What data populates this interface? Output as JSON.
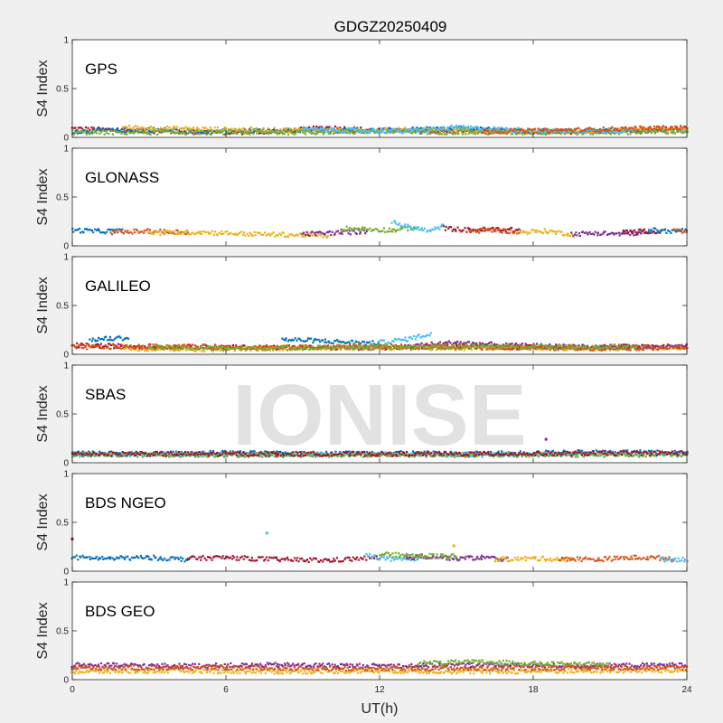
{
  "chart_data": {
    "type": "scatter",
    "title": "GDGZ20250409",
    "xlabel": "UT(h)",
    "ylabel": "S4 Index",
    "xlim": [
      0,
      24
    ],
    "ylim": [
      0,
      1
    ],
    "xticks": [
      "0",
      "6",
      "12",
      "18",
      "24"
    ],
    "yticks": [
      "0",
      "0.5",
      "1"
    ],
    "watermark": "IONISE",
    "series_colors": [
      "#0072BD",
      "#D95319",
      "#EDB120",
      "#7E2F8E",
      "#77AC30",
      "#4DBEEE",
      "#A2142F"
    ],
    "panels": [
      {
        "name": "GPS",
        "segments": [
          {
            "color_index": 6,
            "x": [
              0,
              2,
              4,
              6,
              8,
              10,
              12,
              14,
              16,
              18,
              20,
              22,
              24
            ],
            "y": [
              0.09,
              0.07,
              0.06,
              0.05,
              0.06,
              0.1,
              0.07,
              0.06,
              0.07,
              0.06,
              0.06,
              0.08,
              0.09
            ]
          },
          {
            "color_index": 0,
            "x": [
              0,
              3,
              6,
              9,
              12,
              15,
              18,
              21,
              24
            ],
            "y": [
              0.06,
              0.08,
              0.06,
              0.07,
              0.07,
              0.09,
              0.06,
              0.07,
              0.07
            ]
          },
          {
            "color_index": 2,
            "x": [
              2,
              6,
              10,
              14,
              16,
              20,
              24
            ],
            "y": [
              0.1,
              0.08,
              0.07,
              0.08,
              0.06,
              0.06,
              0.08
            ]
          },
          {
            "color_index": 4,
            "x": [
              0,
              4,
              8,
              12,
              16,
              20,
              24
            ],
            "y": [
              0.05,
              0.05,
              0.05,
              0.06,
              0.05,
              0.05,
              0.06
            ]
          },
          {
            "color_index": 5,
            "x": [
              9,
              11,
              13,
              15,
              19,
              22
            ],
            "y": [
              0.08,
              0.07,
              0.06,
              0.1,
              0.06,
              0.07
            ]
          },
          {
            "color_index": 1,
            "x": [
              16,
              19,
              22,
              24
            ],
            "y": [
              0.06,
              0.07,
              0.09,
              0.1
            ]
          }
        ]
      },
      {
        "name": "GLONASS",
        "segments": [
          {
            "color_index": 0,
            "x": [
              0,
              1,
              2
            ],
            "y": [
              0.16,
              0.15,
              0.15
            ]
          },
          {
            "color_index": 1,
            "x": [
              1.5,
              3,
              4.5
            ],
            "y": [
              0.14,
              0.15,
              0.14
            ]
          },
          {
            "color_index": 2,
            "x": [
              3,
              5,
              7,
              9,
              10
            ],
            "y": [
              0.13,
              0.14,
              0.12,
              0.11,
              0.1
            ]
          },
          {
            "color_index": 3,
            "x": [
              9,
              10,
              11,
              11.5
            ],
            "y": [
              0.12,
              0.13,
              0.14,
              0.15
            ]
          },
          {
            "color_index": 4,
            "x": [
              10.5,
              11.5,
              12.5,
              13.5
            ],
            "y": [
              0.18,
              0.17,
              0.16,
              0.19
            ]
          },
          {
            "color_index": 5,
            "x": [
              12.5,
              13,
              14,
              14.5
            ],
            "y": [
              0.24,
              0.2,
              0.15,
              0.21
            ]
          },
          {
            "color_index": 6,
            "x": [
              14.5,
              15.5,
              16.5,
              17.5
            ],
            "y": [
              0.18,
              0.16,
              0.17,
              0.16
            ]
          },
          {
            "color_index": 1,
            "x": [
              15.5,
              16.5,
              17.5
            ],
            "y": [
              0.15,
              0.16,
              0.14
            ]
          },
          {
            "color_index": 2,
            "x": [
              17.5,
              18.5,
              19.5
            ],
            "y": [
              0.14,
              0.15,
              0.12
            ]
          },
          {
            "color_index": 3,
            "x": [
              19.5,
              20.5,
              21.5,
              22.5
            ],
            "y": [
              0.12,
              0.13,
              0.12,
              0.14
            ]
          },
          {
            "color_index": 6,
            "x": [
              21.5,
              22.5,
              23
            ],
            "y": [
              0.14,
              0.15,
              0.14
            ]
          },
          {
            "color_index": 0,
            "x": [
              22.5,
              23.5,
              24
            ],
            "y": [
              0.16,
              0.15,
              0.16
            ]
          },
          {
            "color_index": 1,
            "x": [
              23.5,
              24
            ],
            "y": [
              0.15,
              0.14
            ]
          }
        ]
      },
      {
        "name": "GALILEO",
        "segments": [
          {
            "color_index": 6,
            "x": [
              0,
              3,
              6,
              9,
              12,
              15,
              18,
              21,
              24
            ],
            "y": [
              0.09,
              0.08,
              0.07,
              0.07,
              0.06,
              0.08,
              0.07,
              0.08,
              0.08
            ]
          },
          {
            "color_index": 0,
            "x": [
              0.7,
              1.5,
              2.2
            ],
            "y": [
              0.15,
              0.16,
              0.17
            ]
          },
          {
            "color_index": 0,
            "x": [
              8.2,
              9.5,
              11,
              12
            ],
            "y": [
              0.15,
              0.14,
              0.12,
              0.11
            ]
          },
          {
            "color_index": 5,
            "x": [
              12,
              13,
              14
            ],
            "y": [
              0.12,
              0.15,
              0.21
            ]
          },
          {
            "color_index": 2,
            "x": [
              2,
              5,
              8,
              11,
              14,
              17,
              20,
              23,
              24
            ],
            "y": [
              0.06,
              0.05,
              0.06,
              0.07,
              0.06,
              0.07,
              0.06,
              0.07,
              0.06
            ]
          },
          {
            "color_index": 3,
            "x": [
              13,
              15,
              17,
              19,
              21,
              24
            ],
            "y": [
              0.08,
              0.12,
              0.09,
              0.08,
              0.07,
              0.08
            ]
          },
          {
            "color_index": 1,
            "x": [
              0,
              4,
              8,
              12,
              16,
              20,
              24
            ],
            "y": [
              0.07,
              0.08,
              0.07,
              0.08,
              0.07,
              0.06,
              0.07
            ]
          },
          {
            "color_index": 4,
            "x": [
              3,
              6,
              11,
              18,
              22
            ],
            "y": [
              0.07,
              0.06,
              0.07,
              0.08,
              0.07
            ]
          }
        ]
      },
      {
        "name": "SBAS",
        "segments": [
          {
            "color_index": 0,
            "x": [
              0,
              3,
              6,
              9,
              12,
              15,
              18,
              21,
              24
            ],
            "y": [
              0.1,
              0.09,
              0.1,
              0.09,
              0.1,
              0.09,
              0.1,
              0.11,
              0.1
            ]
          },
          {
            "color_index": 5,
            "x": [
              0,
              4,
              8,
              12,
              16,
              20,
              24
            ],
            "y": [
              0.08,
              0.09,
              0.08,
              0.09,
              0.08,
              0.09,
              0.09
            ]
          },
          {
            "color_index": 4,
            "x": [
              0,
              6,
              12,
              18,
              24
            ],
            "y": [
              0.08,
              0.08,
              0.08,
              0.08,
              0.08
            ]
          },
          {
            "color_index": 6,
            "x": [
              0,
              8,
              16,
              24
            ],
            "y": [
              0.09,
              0.09,
              0.09,
              0.1
            ]
          },
          {
            "color_index": 3,
            "x": [
              18.5
            ],
            "y": [
              0.24
            ]
          }
        ]
      },
      {
        "name": "BDS NGEO",
        "segments": [
          {
            "color_index": 0,
            "x": [
              0,
              1.5,
              3,
              4.5
            ],
            "y": [
              0.14,
              0.13,
              0.14,
              0.12
            ]
          },
          {
            "color_index": 6,
            "x": [
              4.5,
              6,
              8,
              10,
              12
            ],
            "y": [
              0.13,
              0.14,
              0.12,
              0.11,
              0.14
            ]
          },
          {
            "color_index": 5,
            "x": [
              11.5,
              12.5,
              13.5
            ],
            "y": [
              0.16,
              0.12,
              0.11
            ]
          },
          {
            "color_index": 3,
            "x": [
              13,
              14,
              15,
              16,
              17
            ],
            "y": [
              0.14,
              0.15,
              0.13,
              0.14,
              0.12
            ]
          },
          {
            "color_index": 2,
            "x": [
              16.5,
              18,
              19.5
            ],
            "y": [
              0.12,
              0.13,
              0.12
            ]
          },
          {
            "color_index": 1,
            "x": [
              19,
              20.5,
              22,
              23.5
            ],
            "y": [
              0.13,
              0.12,
              0.14,
              0.13
            ]
          },
          {
            "color_index": 5,
            "x": [
              23,
              24
            ],
            "y": [
              0.12,
              0.12
            ]
          },
          {
            "color_index": 4,
            "x": [
              12,
              13.5,
              15
            ],
            "y": [
              0.17,
              0.16,
              0.15
            ]
          },
          {
            "color_index": 6,
            "x": [
              0
            ],
            "y": [
              0.33
            ]
          },
          {
            "color_index": 5,
            "x": [
              7.6
            ],
            "y": [
              0.39
            ]
          },
          {
            "color_index": 2,
            "x": [
              14.9
            ],
            "y": [
              0.26
            ]
          }
        ]
      },
      {
        "name": "BDS GEO",
        "segments": [
          {
            "color_index": 2,
            "x": [
              0,
              4,
              8,
              12,
              16,
              20,
              24
            ],
            "y": [
              0.08,
              0.09,
              0.08,
              0.09,
              0.08,
              0.09,
              0.09
            ]
          },
          {
            "color_index": 3,
            "x": [
              0,
              4,
              8,
              12,
              16,
              20,
              24
            ],
            "y": [
              0.15,
              0.14,
              0.15,
              0.14,
              0.15,
              0.14,
              0.15
            ]
          },
          {
            "color_index": 4,
            "x": [
              13.5,
              16,
              18.5,
              21
            ],
            "y": [
              0.17,
              0.18,
              0.16,
              0.15
            ]
          },
          {
            "color_index": 1,
            "x": [
              0,
              6,
              12,
              18,
              24
            ],
            "y": [
              0.12,
              0.12,
              0.11,
              0.12,
              0.12
            ]
          }
        ]
      }
    ]
  }
}
